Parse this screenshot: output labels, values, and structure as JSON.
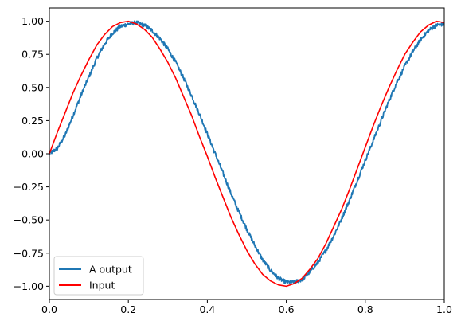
{
  "chart_data": {
    "type": "line",
    "title": "",
    "xlabel": "",
    "ylabel": "",
    "xlim": [
      0.0,
      1.0
    ],
    "ylim": [
      -1.1,
      1.1
    ],
    "grid": false,
    "legend_position": "lower-left",
    "x_ticks": [
      0.0,
      0.2,
      0.4,
      0.6,
      0.8,
      1.0
    ],
    "x_tick_labels": [
      "0.0",
      "0.2",
      "0.4",
      "0.6",
      "0.8",
      "1.0"
    ],
    "y_ticks": [
      1.0,
      0.75,
      0.5,
      0.25,
      0.0,
      -0.25,
      -0.5,
      -0.75,
      -1.0
    ],
    "y_tick_labels": [
      "1.00",
      "0.75",
      "0.50",
      "0.25",
      "0.00",
      "−0.25",
      "−0.50",
      "−0.75",
      "−1.00"
    ],
    "series": [
      {
        "name": "A output",
        "color": "#1f77b4",
        "style": "noisy",
        "x": [
          0.0,
          0.02,
          0.04,
          0.06,
          0.08,
          0.1,
          0.12,
          0.14,
          0.16,
          0.18,
          0.2,
          0.22,
          0.24,
          0.26,
          0.28,
          0.3,
          0.32,
          0.34,
          0.36,
          0.38,
          0.4,
          0.42,
          0.44,
          0.46,
          0.48,
          0.5,
          0.52,
          0.54,
          0.56,
          0.58,
          0.6,
          0.62,
          0.64,
          0.66,
          0.68,
          0.7,
          0.72,
          0.74,
          0.76,
          0.78,
          0.8,
          0.82,
          0.84,
          0.86,
          0.88,
          0.9,
          0.92,
          0.94,
          0.96,
          0.98,
          1.0
        ],
        "y": [
          0.0,
          0.04,
          0.14,
          0.29,
          0.44,
          0.58,
          0.72,
          0.83,
          0.91,
          0.96,
          0.98,
          0.99,
          0.97,
          0.93,
          0.87,
          0.79,
          0.69,
          0.57,
          0.44,
          0.3,
          0.15,
          0.0,
          -0.15,
          -0.3,
          -0.44,
          -0.57,
          -0.69,
          -0.8,
          -0.88,
          -0.94,
          -0.97,
          -0.97,
          -0.95,
          -0.89,
          -0.82,
          -0.73,
          -0.62,
          -0.49,
          -0.35,
          -0.2,
          -0.05,
          0.1,
          0.25,
          0.4,
          0.54,
          0.66,
          0.77,
          0.86,
          0.93,
          0.97,
          0.98
        ]
      },
      {
        "name": "Input",
        "color": "#ff0000",
        "style": "smooth",
        "x": [
          0.0,
          0.02,
          0.04,
          0.06,
          0.08,
          0.1,
          0.12,
          0.14,
          0.16,
          0.18,
          0.2,
          0.22,
          0.24,
          0.26,
          0.28,
          0.3,
          0.32,
          0.34,
          0.36,
          0.38,
          0.4,
          0.42,
          0.44,
          0.46,
          0.48,
          0.5,
          0.52,
          0.54,
          0.56,
          0.58,
          0.6,
          0.62,
          0.64,
          0.66,
          0.68,
          0.7,
          0.72,
          0.74,
          0.76,
          0.78,
          0.8,
          0.82,
          0.84,
          0.86,
          0.88,
          0.9,
          0.92,
          0.94,
          0.96,
          0.98,
          1.0
        ],
        "y": [
          0.0,
          0.16,
          0.31,
          0.46,
          0.59,
          0.71,
          0.82,
          0.9,
          0.96,
          0.99,
          1.0,
          0.98,
          0.94,
          0.88,
          0.79,
          0.69,
          0.57,
          0.43,
          0.29,
          0.13,
          -0.02,
          -0.18,
          -0.33,
          -0.48,
          -0.61,
          -0.73,
          -0.83,
          -0.91,
          -0.96,
          -0.99,
          -1.0,
          -0.98,
          -0.94,
          -0.87,
          -0.79,
          -0.68,
          -0.55,
          -0.42,
          -0.27,
          -0.11,
          0.05,
          0.21,
          0.36,
          0.5,
          0.63,
          0.75,
          0.84,
          0.92,
          0.97,
          1.0,
          0.99
        ]
      }
    ]
  }
}
